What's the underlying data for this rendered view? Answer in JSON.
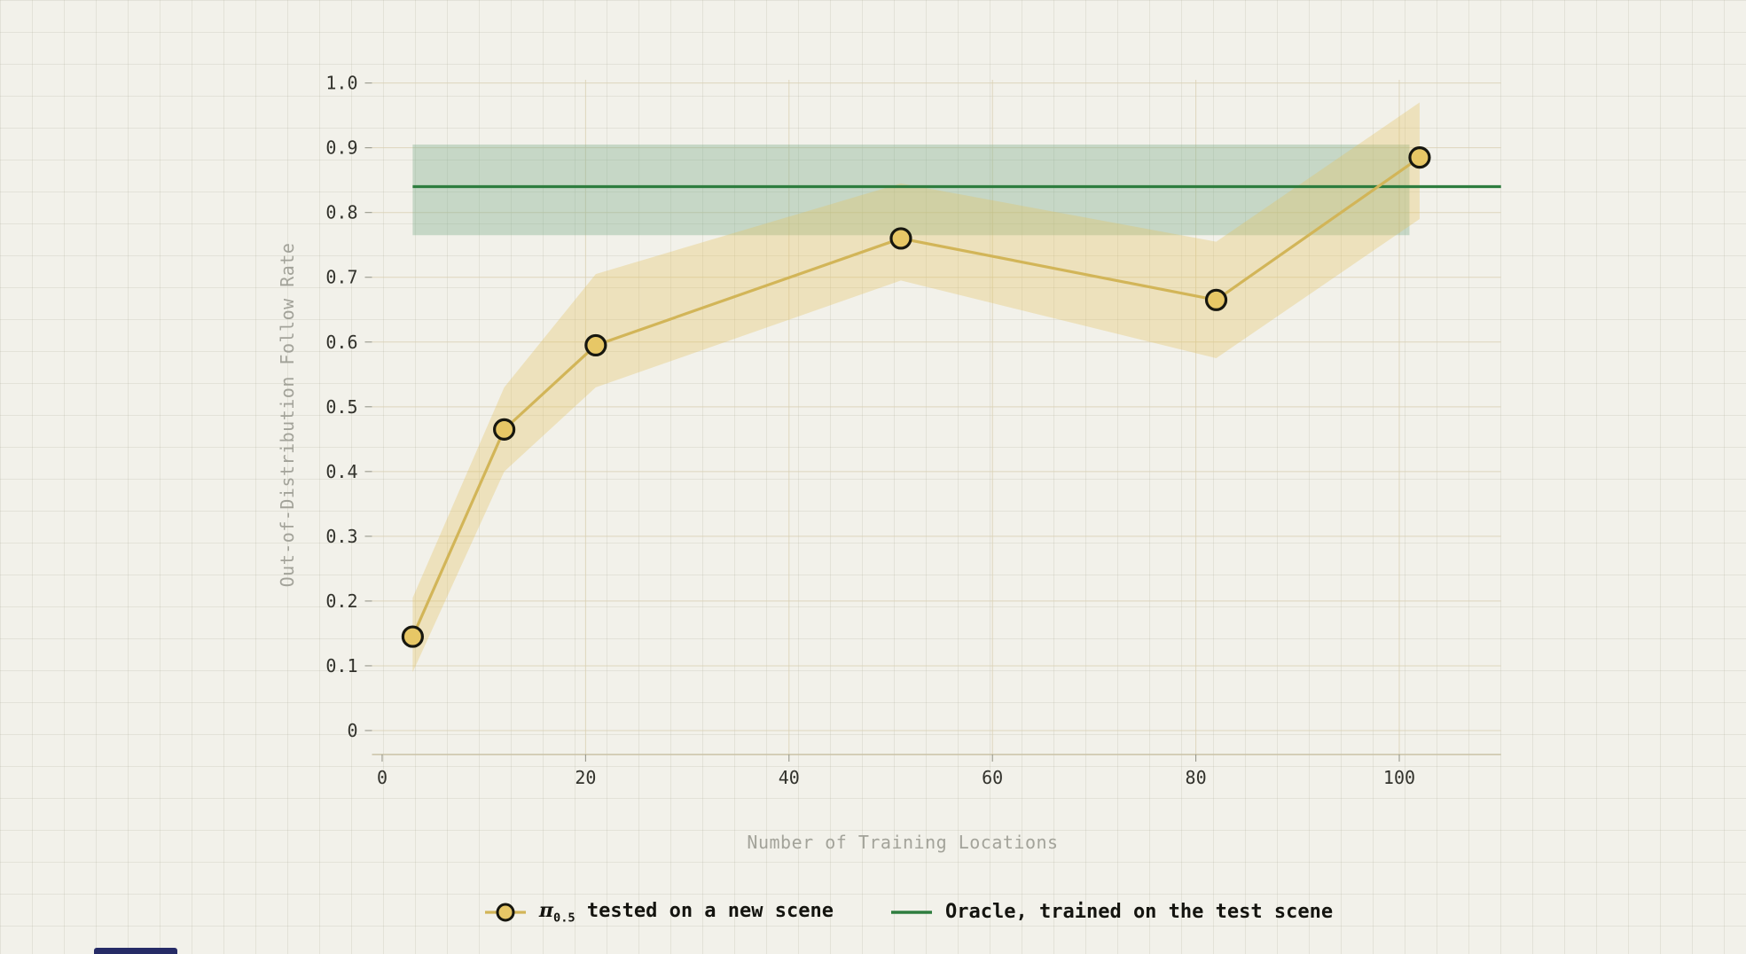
{
  "page": {
    "background_color": "#f2f1ea"
  },
  "chart_data": {
    "type": "line",
    "title": "",
    "xlabel": "Number of Training Locations",
    "ylabel": "Out-of-Distribution Follow Rate",
    "xlim": [
      -1,
      110
    ],
    "ylim": [
      -0.037,
      1.005
    ],
    "x_ticks": [
      0,
      20,
      40,
      60,
      80,
      100
    ],
    "x_tick_labels": [
      "0",
      "20",
      "40",
      "60",
      "80",
      "100"
    ],
    "y_ticks": [
      0,
      0.1,
      0.2,
      0.3,
      0.4,
      0.5,
      0.6,
      0.7,
      0.8,
      0.9,
      1.0
    ],
    "y_tick_labels": [
      "0",
      "0.1",
      "0.2",
      "0.3",
      "0.4",
      "0.5",
      "0.6",
      "0.7",
      "0.8",
      "0.9",
      "1.0"
    ],
    "grid": true,
    "grid_color": "#d8d0b2",
    "axis_spine_color": "#c9c2a6",
    "tick_mark_color": "#8f8f82",
    "tick_label_color": "#32322c",
    "axis_title_color": "#a3a39a",
    "series": [
      {
        "name": "pi-0.5 tested on a new scene",
        "kind": "line_markers_band",
        "color": "#d2b558",
        "marker_fill": "#e7c766",
        "marker_stroke": "#17170f",
        "band_color": "#e3c35f",
        "band_opacity": 0.33,
        "x": [
          3,
          12,
          21,
          51,
          82,
          102
        ],
        "y": [
          0.145,
          0.465,
          0.595,
          0.76,
          0.665,
          0.885
        ],
        "band_lower": [
          0.09,
          0.4,
          0.53,
          0.695,
          0.575,
          0.79
        ],
        "band_upper": [
          0.205,
          0.53,
          0.705,
          0.845,
          0.755,
          0.97
        ]
      },
      {
        "name": "Oracle, trained on the test scene",
        "kind": "hline_band",
        "color": "#2e7d3f",
        "value": 0.84,
        "x_start": 3,
        "x_end": 110,
        "band_lower": 0.765,
        "band_upper": 0.905,
        "band_x_start": 3,
        "band_x_end": 101,
        "band_color": "#7fae8c",
        "band_opacity": 0.38
      }
    ]
  },
  "legend": {
    "items": [
      {
        "pi": "π",
        "sub": "0.5",
        "rest": " tested on a new scene"
      },
      {
        "label": "Oracle, trained on the test scene"
      }
    ]
  }
}
